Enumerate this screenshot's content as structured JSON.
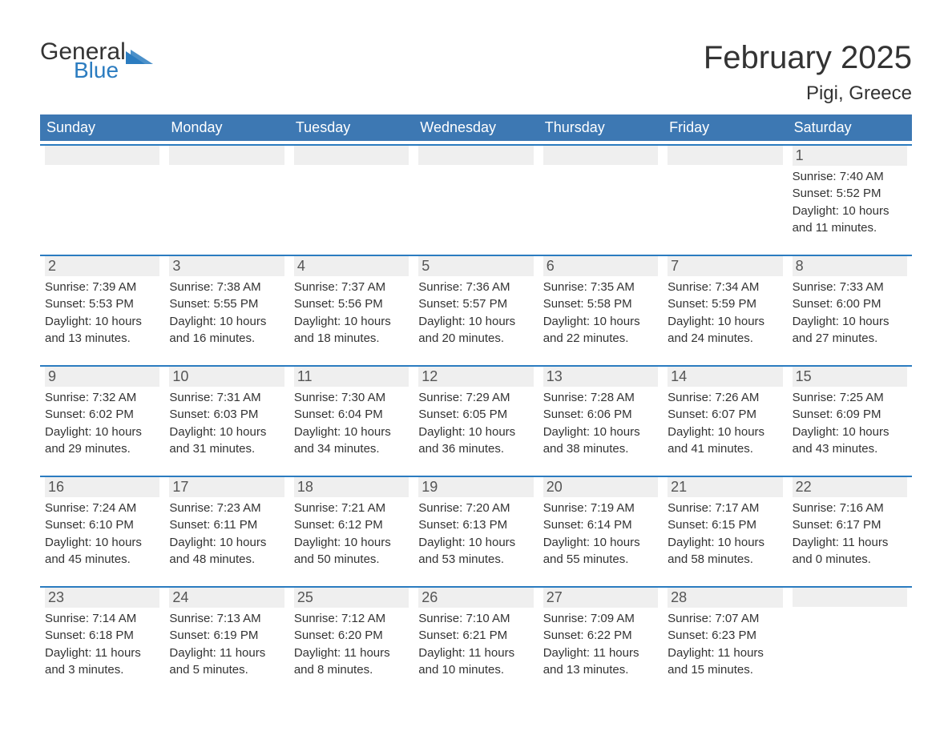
{
  "brand": {
    "text1": "General",
    "text2": "Blue",
    "accent": "#2b7cc0"
  },
  "title": {
    "month": "February 2025",
    "location": "Pigi, Greece"
  },
  "dayNames": [
    "Sunday",
    "Monday",
    "Tuesday",
    "Wednesday",
    "Thursday",
    "Friday",
    "Saturday"
  ],
  "colors": {
    "header_bg": "#3d78b3",
    "header_text": "#ffffff",
    "border": "#2b7cc0",
    "daynum_bg": "#efefef",
    "text": "#333333",
    "page_bg": "#ffffff"
  },
  "weeks": [
    [
      {
        "empty": true
      },
      {
        "empty": true
      },
      {
        "empty": true
      },
      {
        "empty": true
      },
      {
        "empty": true
      },
      {
        "empty": true
      },
      {
        "num": "1",
        "sunrise": "Sunrise: 7:40 AM",
        "sunset": "Sunset: 5:52 PM",
        "daylight1": "Daylight: 10 hours",
        "daylight2": "and 11 minutes."
      }
    ],
    [
      {
        "num": "2",
        "sunrise": "Sunrise: 7:39 AM",
        "sunset": "Sunset: 5:53 PM",
        "daylight1": "Daylight: 10 hours",
        "daylight2": "and 13 minutes."
      },
      {
        "num": "3",
        "sunrise": "Sunrise: 7:38 AM",
        "sunset": "Sunset: 5:55 PM",
        "daylight1": "Daylight: 10 hours",
        "daylight2": "and 16 minutes."
      },
      {
        "num": "4",
        "sunrise": "Sunrise: 7:37 AM",
        "sunset": "Sunset: 5:56 PM",
        "daylight1": "Daylight: 10 hours",
        "daylight2": "and 18 minutes."
      },
      {
        "num": "5",
        "sunrise": "Sunrise: 7:36 AM",
        "sunset": "Sunset: 5:57 PM",
        "daylight1": "Daylight: 10 hours",
        "daylight2": "and 20 minutes."
      },
      {
        "num": "6",
        "sunrise": "Sunrise: 7:35 AM",
        "sunset": "Sunset: 5:58 PM",
        "daylight1": "Daylight: 10 hours",
        "daylight2": "and 22 minutes."
      },
      {
        "num": "7",
        "sunrise": "Sunrise: 7:34 AM",
        "sunset": "Sunset: 5:59 PM",
        "daylight1": "Daylight: 10 hours",
        "daylight2": "and 24 minutes."
      },
      {
        "num": "8",
        "sunrise": "Sunrise: 7:33 AM",
        "sunset": "Sunset: 6:00 PM",
        "daylight1": "Daylight: 10 hours",
        "daylight2": "and 27 minutes."
      }
    ],
    [
      {
        "num": "9",
        "sunrise": "Sunrise: 7:32 AM",
        "sunset": "Sunset: 6:02 PM",
        "daylight1": "Daylight: 10 hours",
        "daylight2": "and 29 minutes."
      },
      {
        "num": "10",
        "sunrise": "Sunrise: 7:31 AM",
        "sunset": "Sunset: 6:03 PM",
        "daylight1": "Daylight: 10 hours",
        "daylight2": "and 31 minutes."
      },
      {
        "num": "11",
        "sunrise": "Sunrise: 7:30 AM",
        "sunset": "Sunset: 6:04 PM",
        "daylight1": "Daylight: 10 hours",
        "daylight2": "and 34 minutes."
      },
      {
        "num": "12",
        "sunrise": "Sunrise: 7:29 AM",
        "sunset": "Sunset: 6:05 PM",
        "daylight1": "Daylight: 10 hours",
        "daylight2": "and 36 minutes."
      },
      {
        "num": "13",
        "sunrise": "Sunrise: 7:28 AM",
        "sunset": "Sunset: 6:06 PM",
        "daylight1": "Daylight: 10 hours",
        "daylight2": "and 38 minutes."
      },
      {
        "num": "14",
        "sunrise": "Sunrise: 7:26 AM",
        "sunset": "Sunset: 6:07 PM",
        "daylight1": "Daylight: 10 hours",
        "daylight2": "and 41 minutes."
      },
      {
        "num": "15",
        "sunrise": "Sunrise: 7:25 AM",
        "sunset": "Sunset: 6:09 PM",
        "daylight1": "Daylight: 10 hours",
        "daylight2": "and 43 minutes."
      }
    ],
    [
      {
        "num": "16",
        "sunrise": "Sunrise: 7:24 AM",
        "sunset": "Sunset: 6:10 PM",
        "daylight1": "Daylight: 10 hours",
        "daylight2": "and 45 minutes."
      },
      {
        "num": "17",
        "sunrise": "Sunrise: 7:23 AM",
        "sunset": "Sunset: 6:11 PM",
        "daylight1": "Daylight: 10 hours",
        "daylight2": "and 48 minutes."
      },
      {
        "num": "18",
        "sunrise": "Sunrise: 7:21 AM",
        "sunset": "Sunset: 6:12 PM",
        "daylight1": "Daylight: 10 hours",
        "daylight2": "and 50 minutes."
      },
      {
        "num": "19",
        "sunrise": "Sunrise: 7:20 AM",
        "sunset": "Sunset: 6:13 PM",
        "daylight1": "Daylight: 10 hours",
        "daylight2": "and 53 minutes."
      },
      {
        "num": "20",
        "sunrise": "Sunrise: 7:19 AM",
        "sunset": "Sunset: 6:14 PM",
        "daylight1": "Daylight: 10 hours",
        "daylight2": "and 55 minutes."
      },
      {
        "num": "21",
        "sunrise": "Sunrise: 7:17 AM",
        "sunset": "Sunset: 6:15 PM",
        "daylight1": "Daylight: 10 hours",
        "daylight2": "and 58 minutes."
      },
      {
        "num": "22",
        "sunrise": "Sunrise: 7:16 AM",
        "sunset": "Sunset: 6:17 PM",
        "daylight1": "Daylight: 11 hours",
        "daylight2": "and 0 minutes."
      }
    ],
    [
      {
        "num": "23",
        "sunrise": "Sunrise: 7:14 AM",
        "sunset": "Sunset: 6:18 PM",
        "daylight1": "Daylight: 11 hours",
        "daylight2": "and 3 minutes."
      },
      {
        "num": "24",
        "sunrise": "Sunrise: 7:13 AM",
        "sunset": "Sunset: 6:19 PM",
        "daylight1": "Daylight: 11 hours",
        "daylight2": "and 5 minutes."
      },
      {
        "num": "25",
        "sunrise": "Sunrise: 7:12 AM",
        "sunset": "Sunset: 6:20 PM",
        "daylight1": "Daylight: 11 hours",
        "daylight2": "and 8 minutes."
      },
      {
        "num": "26",
        "sunrise": "Sunrise: 7:10 AM",
        "sunset": "Sunset: 6:21 PM",
        "daylight1": "Daylight: 11 hours",
        "daylight2": "and 10 minutes."
      },
      {
        "num": "27",
        "sunrise": "Sunrise: 7:09 AM",
        "sunset": "Sunset: 6:22 PM",
        "daylight1": "Daylight: 11 hours",
        "daylight2": "and 13 minutes."
      },
      {
        "num": "28",
        "sunrise": "Sunrise: 7:07 AM",
        "sunset": "Sunset: 6:23 PM",
        "daylight1": "Daylight: 11 hours",
        "daylight2": "and 15 minutes."
      },
      {
        "empty": true
      }
    ]
  ]
}
